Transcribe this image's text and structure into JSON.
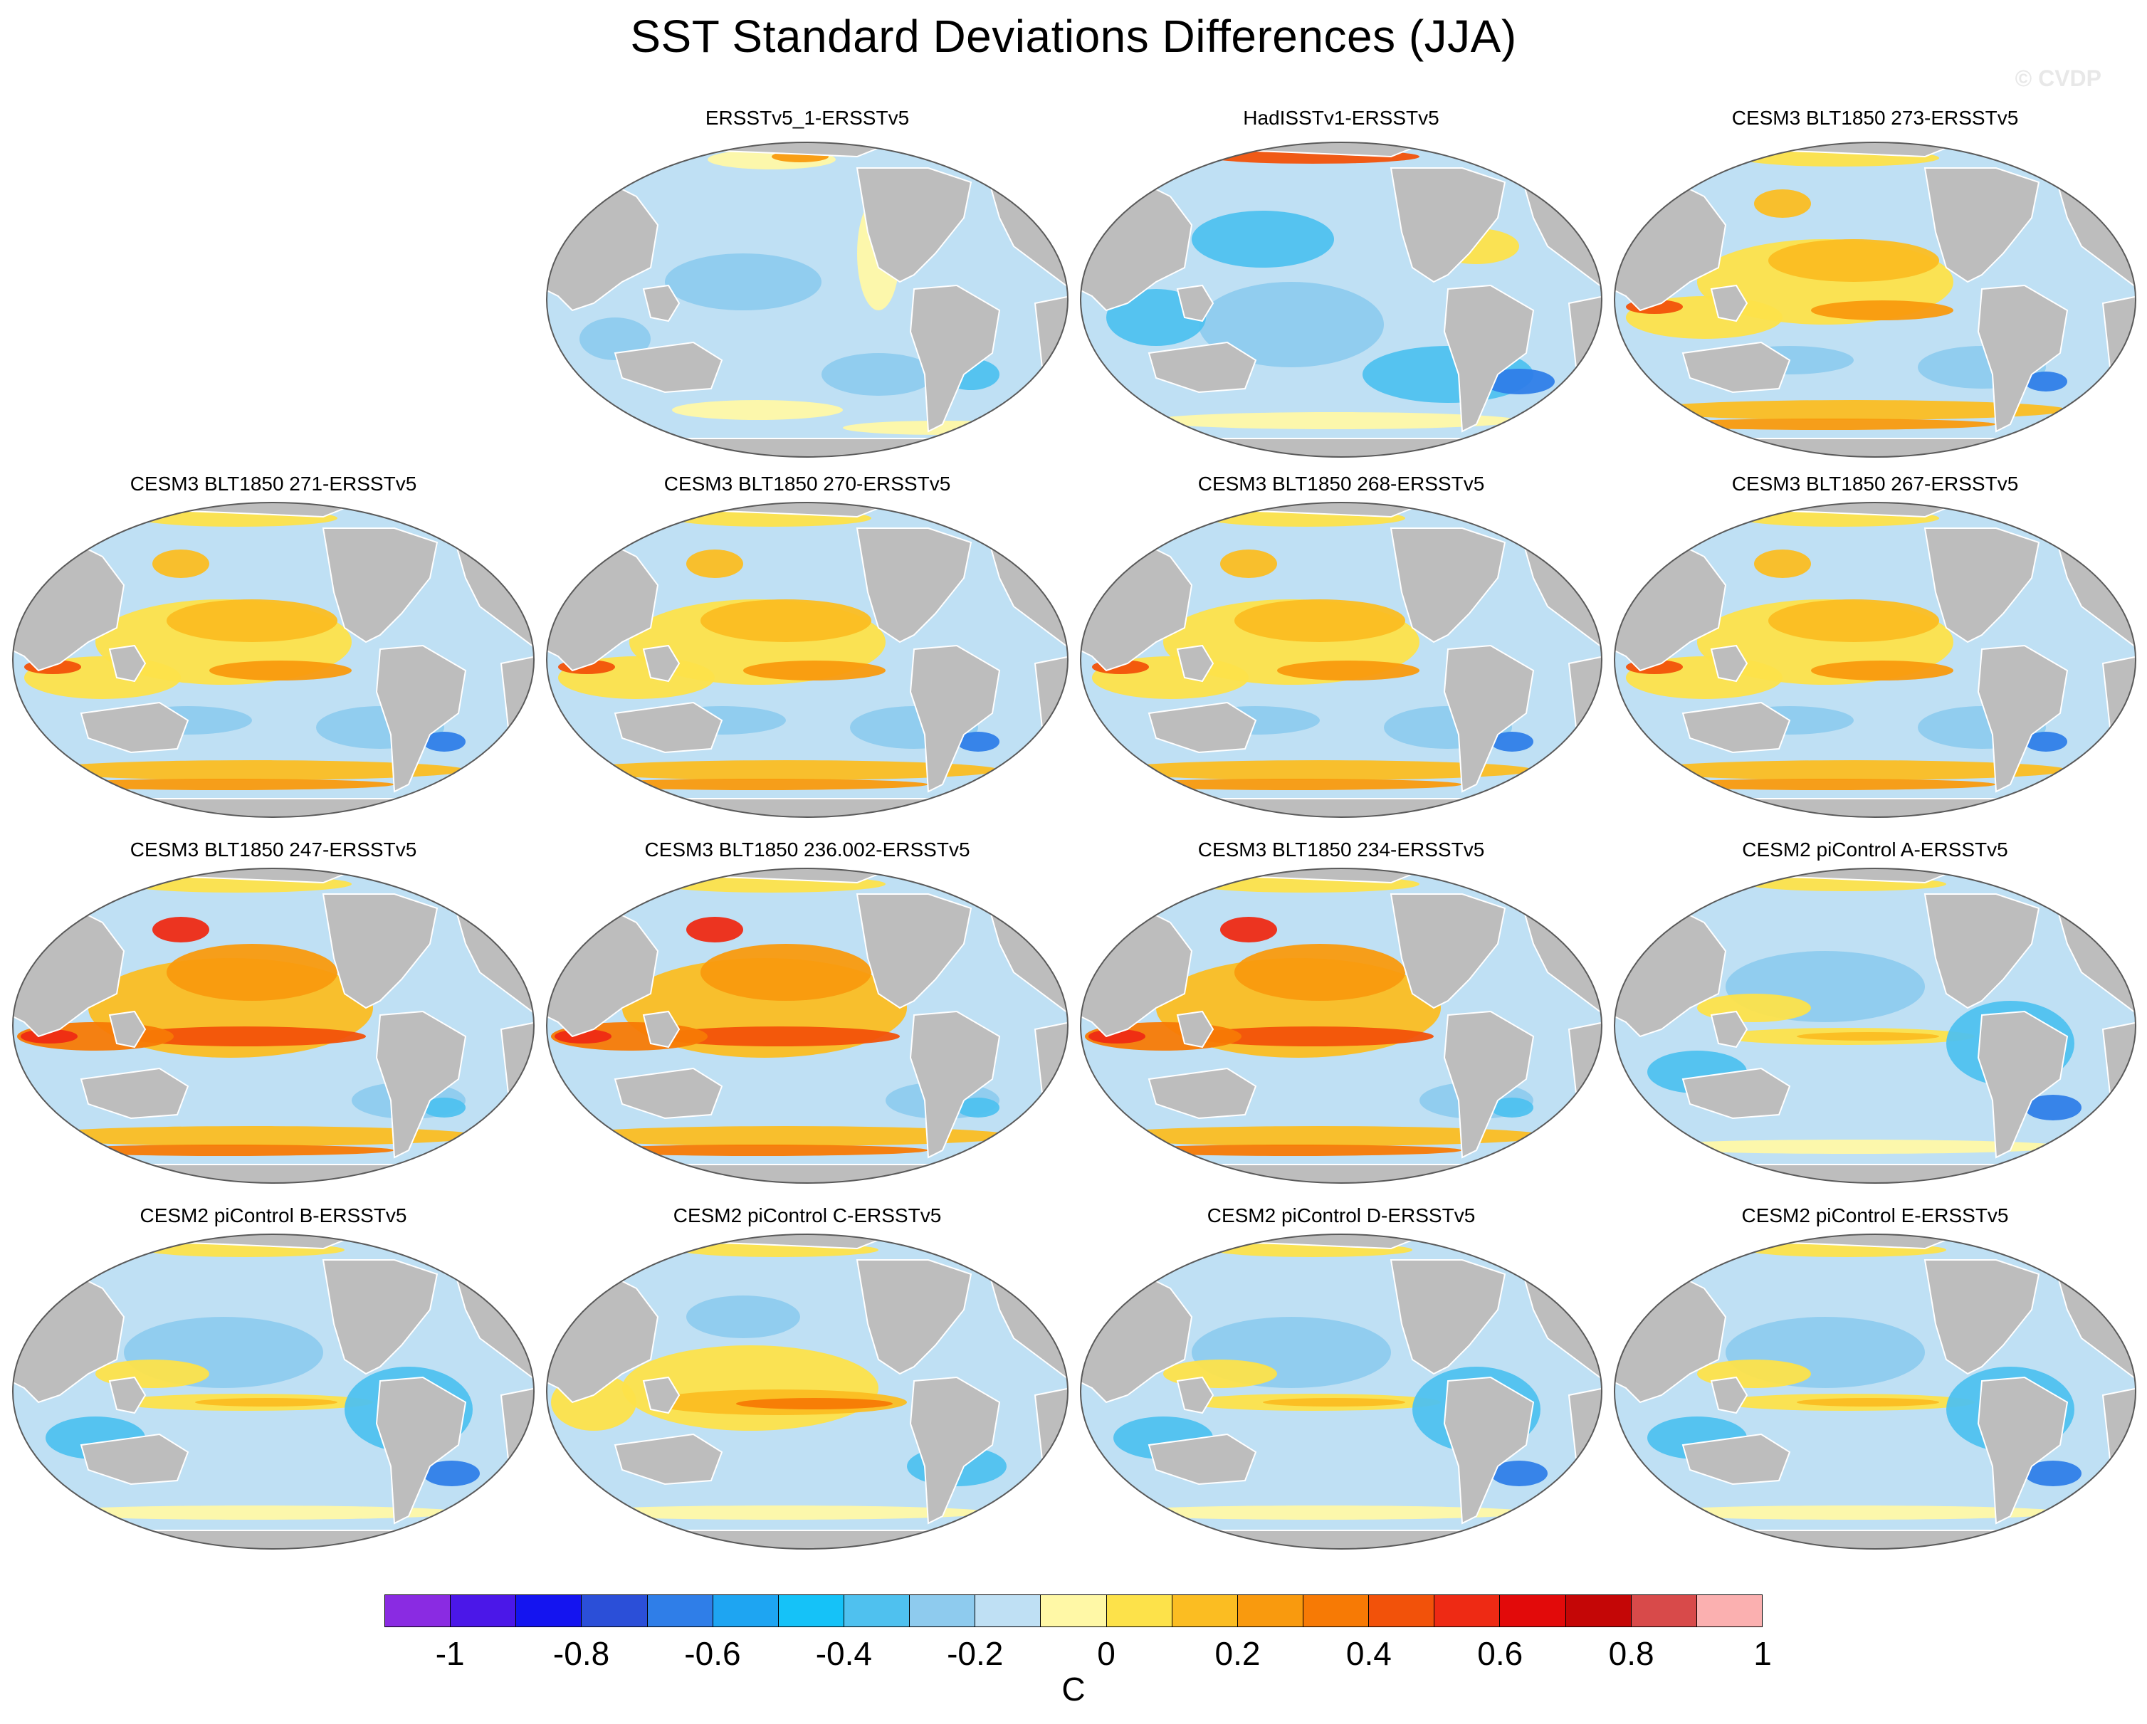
{
  "title": "SST Standard Deviations Differences (JJA)",
  "watermark": "© CVDP",
  "colors": {
    "ocean": "#bfe0f4",
    "land": "#bdbdbd",
    "outline": "#5a5a5a"
  },
  "panels": [
    {
      "title": "ERSSTv5_1-ERSSTv5",
      "variant": "obs1"
    },
    {
      "title": "HadISSTv1-ERSSTv5",
      "variant": "obs2"
    },
    {
      "title": "CESM3 BLT1850 273-ERSSTv5",
      "variant": "warm"
    },
    {
      "title": "CESM3 BLT1850 271-ERSSTv5",
      "variant": "warm"
    },
    {
      "title": "CESM3 BLT1850 270-ERSSTv5",
      "variant": "warm"
    },
    {
      "title": "CESM3 BLT1850 268-ERSSTv5",
      "variant": "warm"
    },
    {
      "title": "CESM3 BLT1850 267-ERSSTv5",
      "variant": "warm"
    },
    {
      "title": "CESM3 BLT1850 247-ERSSTv5",
      "variant": "hot"
    },
    {
      "title": "CESM3 BLT1850 236.002-ERSSTv5",
      "variant": "hot"
    },
    {
      "title": "CESM3 BLT1850 234-ERSSTv5",
      "variant": "hot"
    },
    {
      "title": "CESM2 piControl A-ERSSTv5",
      "variant": "cool"
    },
    {
      "title": "CESM2 piControl B-ERSSTv5",
      "variant": "cool"
    },
    {
      "title": "CESM2 piControl C-ERSSTv5",
      "variant": "mixed"
    },
    {
      "title": "CESM2 piControl D-ERSSTv5",
      "variant": "cool"
    },
    {
      "title": "CESM2 piControl E-ERSSTv5",
      "variant": "cool"
    }
  ],
  "colorbar": {
    "units": "C",
    "colors": [
      "#8a2be2",
      "#4b17e8",
      "#1414f0",
      "#2b4fd8",
      "#2f7ee8",
      "#1ea5f2",
      "#15c2f8",
      "#4fc1ef",
      "#8ecbee",
      "#bfe0f4",
      "#fff8a6",
      "#fde24a",
      "#fbbd22",
      "#f99a0e",
      "#f77a05",
      "#f2520a",
      "#ee2a14",
      "#e20a0a",
      "#c40606",
      "#d84a4a",
      "#fbb0b0"
    ],
    "tick_labels": [
      "-1",
      "-0.8",
      "-0.6",
      "-0.4",
      "-0.2",
      "0",
      "0.2",
      "0.4",
      "0.6",
      "0.8",
      "1"
    ]
  }
}
